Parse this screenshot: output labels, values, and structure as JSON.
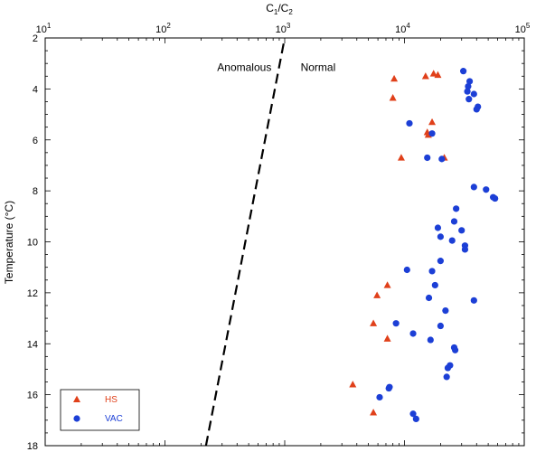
{
  "chart_data": {
    "type": "scatter",
    "x_axis": {
      "label_main": "C",
      "label_sub1": "1",
      "label_slash": "/C",
      "label_sub2": "2",
      "scale": "log",
      "lim": [
        10,
        100000
      ],
      "position": "top",
      "tick_labels": [
        {
          "value": 10,
          "base": "10",
          "exp": "1"
        },
        {
          "value": 100,
          "base": "10",
          "exp": "2"
        },
        {
          "value": 1000,
          "base": "10",
          "exp": "3"
        },
        {
          "value": 10000,
          "base": "10",
          "exp": "4"
        },
        {
          "value": 100000,
          "base": "10",
          "exp": "5"
        }
      ]
    },
    "y_axis": {
      "label": "Temperature (°C)",
      "lim": [
        2,
        18
      ],
      "inverted": true,
      "ticks": [
        2,
        4,
        6,
        8,
        10,
        12,
        14,
        16,
        18
      ],
      "tick_labels": [
        "2",
        "4",
        "6",
        "8",
        "10",
        "12",
        "14",
        "16",
        "18"
      ]
    },
    "annotations": [
      {
        "text": "Anomalous",
        "x": 460,
        "y": 3.15
      },
      {
        "text": "Normal",
        "x": 1900,
        "y": 3.15
      }
    ],
    "boundary_line": {
      "style": "dashed",
      "color": "#000000",
      "points": [
        [
          220,
          18
        ],
        [
          1000,
          2
        ]
      ]
    },
    "legend": {
      "position": "bottom-left"
    },
    "series": [
      {
        "name": "HS",
        "marker": "triangle",
        "color": "#e0401a",
        "points": [
          [
            8200,
            3.6
          ],
          [
            15000,
            3.5
          ],
          [
            17500,
            3.4
          ],
          [
            19000,
            3.45
          ],
          [
            8000,
            4.35
          ],
          [
            17000,
            5.3
          ],
          [
            15500,
            5.7
          ],
          [
            15800,
            5.8
          ],
          [
            9400,
            6.7
          ],
          [
            21500,
            6.7
          ],
          [
            7200,
            11.7
          ],
          [
            5900,
            12.1
          ],
          [
            5500,
            13.2
          ],
          [
            7200,
            13.8
          ],
          [
            3700,
            15.6
          ],
          [
            5500,
            16.7
          ]
        ]
      },
      {
        "name": "VAC",
        "marker": "circle",
        "color": "#1c3fd6",
        "points": [
          [
            31000,
            3.3
          ],
          [
            35000,
            3.7
          ],
          [
            34000,
            3.9
          ],
          [
            33500,
            4.1
          ],
          [
            38000,
            4.2
          ],
          [
            34500,
            4.4
          ],
          [
            41000,
            4.7
          ],
          [
            40000,
            4.8
          ],
          [
            11000,
            5.35
          ],
          [
            17000,
            5.75
          ],
          [
            15500,
            6.7
          ],
          [
            20500,
            6.75
          ],
          [
            38000,
            7.85
          ],
          [
            48000,
            7.95
          ],
          [
            55000,
            8.25
          ],
          [
            57000,
            8.3
          ],
          [
            27000,
            8.7
          ],
          [
            26000,
            9.2
          ],
          [
            19000,
            9.45
          ],
          [
            30000,
            9.55
          ],
          [
            20000,
            9.8
          ],
          [
            25000,
            9.95
          ],
          [
            32000,
            10.15
          ],
          [
            32000,
            10.3
          ],
          [
            20000,
            10.75
          ],
          [
            10500,
            11.1
          ],
          [
            17000,
            11.15
          ],
          [
            18000,
            11.7
          ],
          [
            16000,
            12.2
          ],
          [
            38000,
            12.3
          ],
          [
            22000,
            12.7
          ],
          [
            8500,
            13.2
          ],
          [
            20000,
            13.3
          ],
          [
            11800,
            13.6
          ],
          [
            16500,
            13.85
          ],
          [
            26000,
            14.15
          ],
          [
            26500,
            14.25
          ],
          [
            24000,
            14.85
          ],
          [
            23000,
            14.95
          ],
          [
            22500,
            15.3
          ],
          [
            7500,
            15.7
          ],
          [
            7400,
            15.75
          ],
          [
            6200,
            16.1
          ],
          [
            11800,
            16.75
          ],
          [
            12500,
            16.95
          ]
        ]
      }
    ]
  }
}
